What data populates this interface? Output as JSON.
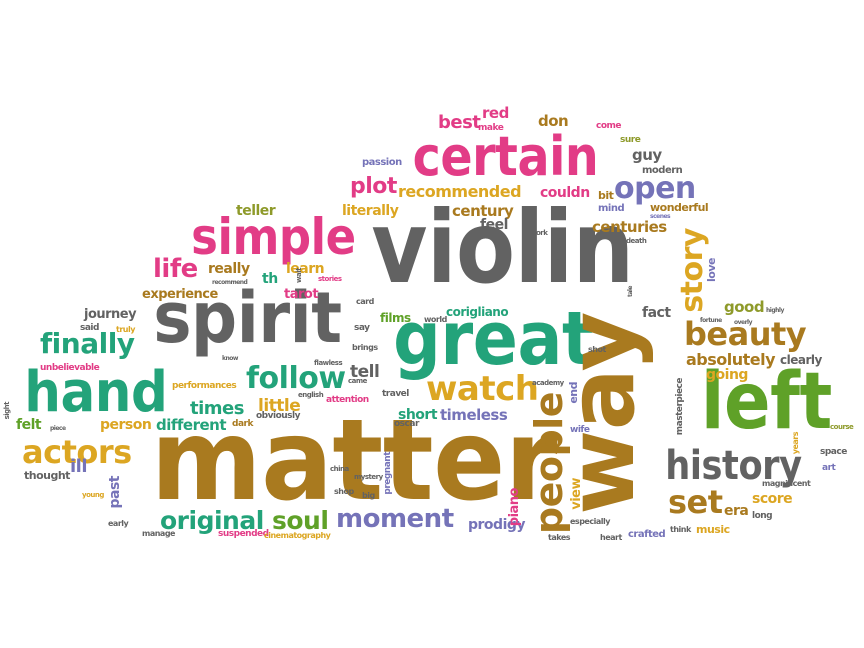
{
  "colors": {
    "green": "#5fa128",
    "brown": "#a97a1f",
    "gold": "#dca622",
    "pink": "#e23c86",
    "teal": "#23a37a",
    "purple": "#7573b8",
    "gray": "#626262",
    "orange": "#e88a1e",
    "olive": "#8e9a2a"
  },
  "words": {
    "matter": "matter",
    "violin": "violin",
    "spirit": "spirit",
    "great": "great",
    "way": "way",
    "left": "left",
    "certain": "certain",
    "simple": "simple",
    "hand": "hand",
    "history": "history",
    "watch": "watch",
    "people": "people",
    "beauty": "beauty",
    "story": "story",
    "follow": "follow",
    "finally": "finally",
    "actors": "actors",
    "moment": "moment",
    "original": "original",
    "soul": "soul",
    "open": "open",
    "set": "set",
    "life": "life",
    "plot": "plot",
    "recommended": "recommended",
    "literally": "literally",
    "century": "century",
    "centuries": "centuries",
    "absolutely": "absolutely",
    "times": "times",
    "different": "different",
    "person": "person",
    "little": "little",
    "tell": "tell",
    "timeless": "timeless",
    "short": "short",
    "journey": "journey",
    "experience": "experience",
    "really": "really",
    "learn": "learn",
    "tarot": "tarot",
    "teller": "teller",
    "feel": "feel",
    "best": "best",
    "red": "red",
    "don": "don",
    "couldn": "couldn",
    "guy": "guy",
    "good": "good",
    "fact": "fact",
    "going": "going",
    "clearly": "clearly",
    "score": "score",
    "era": "era",
    "prodigy": "prodigy",
    "piano": "piano",
    "view": "view",
    "past": "past",
    "ill": "ill",
    "felt": "felt",
    "thought": "thought",
    "passion": "passion",
    "th": "th",
    "films": "films",
    "corigliano": "corigliano",
    "love": "love",
    "wonderful": "wonderful",
    "mind": "mind",
    "bit": "bit",
    "modern": "modern",
    "sure": "sure",
    "come": "come",
    "make": "make",
    "performances": "performances",
    "obviously": "obviously",
    "attention": "attention",
    "travel": "travel",
    "oscar": "oscar",
    "wife": "wife",
    "end": "end",
    "crafted": "crafted",
    "music": "music",
    "long": "long",
    "especially": "especially",
    "takes": "takes",
    "heart": "heart",
    "think": "think",
    "magnificent": "magnificent",
    "masterpiece": "masterpiece",
    "space": "space",
    "art": "art",
    "years": "years",
    "course": "course",
    "unbelievable": "unbelievable",
    "said": "said",
    "truly": "truly",
    "know": "know",
    "flawless": "flawless",
    "brings": "brings",
    "say": "say",
    "card": "card",
    "came": "came",
    "english": "english",
    "dark": "dark",
    "shot": "shot",
    "academy": "academy",
    "pregnant": "pregnant",
    "shop": "shop",
    "big": "big",
    "china": "china",
    "mystery": "mystery",
    "world": "world",
    "early": "early",
    "manage": "manage",
    "young": "young",
    "suspended": "suspended",
    "cinematography": "cinematography",
    "sight": "sight",
    "piece": "piece",
    "stories": "stories",
    "wait": "wait",
    "recommend": "recommend",
    "work": "work",
    "humans": "humans",
    "scenes": "scenes",
    "death": "death",
    "tale": "tale",
    "fortune": "fortune",
    "overly": "overly",
    "highly": "highly"
  }
}
